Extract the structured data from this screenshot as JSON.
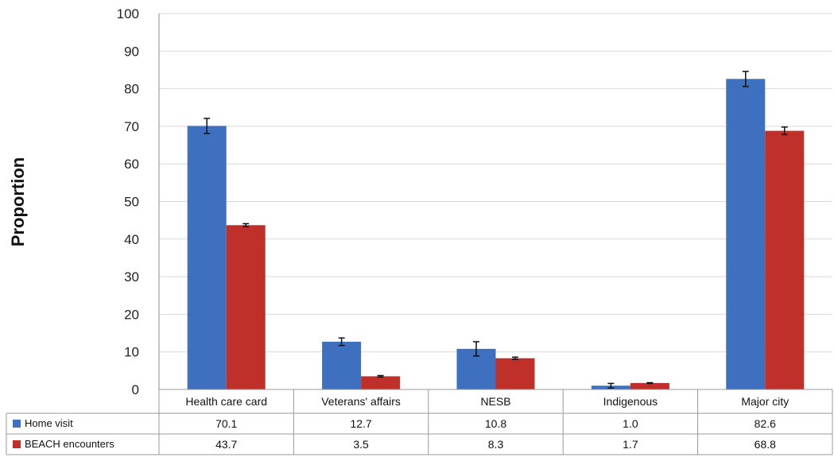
{
  "chart_data": {
    "type": "bar",
    "ylabel": "Proportion",
    "ylim": [
      0,
      100
    ],
    "yticks": [
      "0",
      "10",
      "20",
      "30",
      "40",
      "50",
      "60",
      "70",
      "80",
      "90",
      "100"
    ],
    "categories": [
      "Health care card",
      "Veterans' affairs",
      "NESB",
      "Indigenous",
      "Major city"
    ],
    "series": [
      {
        "name": "Home visit",
        "color": "#3f6fbf",
        "values": [
          70.1,
          12.7,
          10.8,
          1.0,
          82.6
        ],
        "labels": [
          "70.1",
          "12.7",
          "10.8",
          "1.0",
          "82.6"
        ],
        "err": [
          2.0,
          1.0,
          1.9,
          0.6,
          2.0
        ]
      },
      {
        "name": "BEACH encounters",
        "color": "#c0302a",
        "values": [
          43.7,
          3.5,
          8.3,
          1.7,
          68.8
        ],
        "labels": [
          "43.7",
          "3.5",
          "8.3",
          "1.7",
          "68.8"
        ],
        "err": [
          0.4,
          0.2,
          0.3,
          0.1,
          1.0
        ]
      }
    ],
    "grid": true,
    "legend": "data table"
  }
}
